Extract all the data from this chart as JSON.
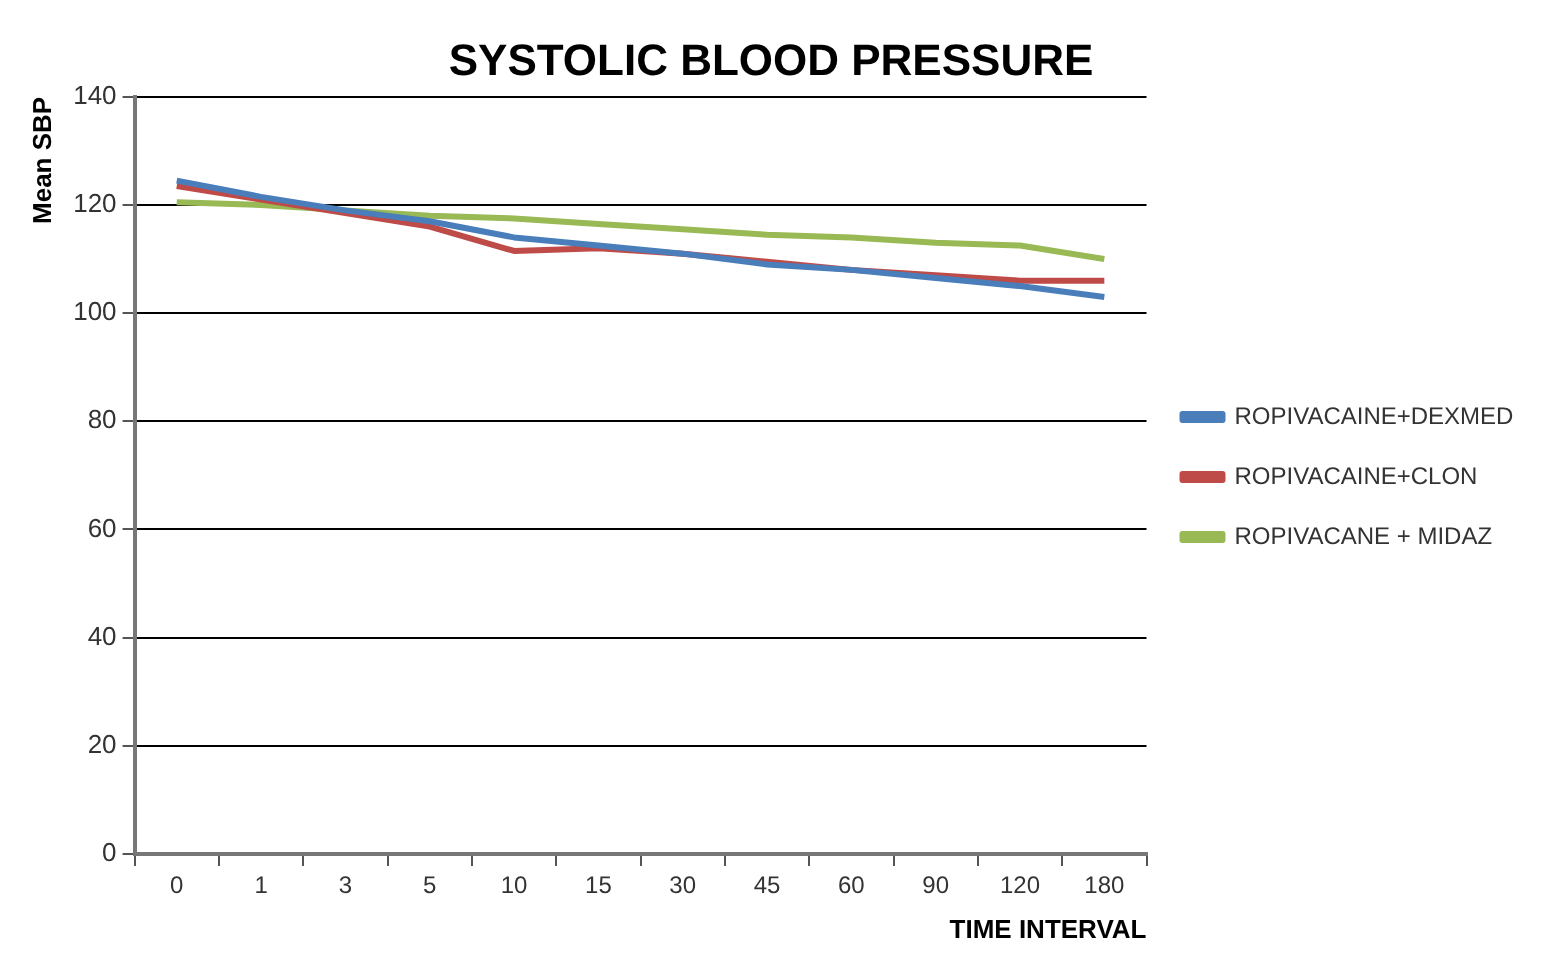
{
  "chart_data": {
    "type": "line",
    "title": "SYSTOLIC BLOOD PRESSURE",
    "xlabel": "TIME INTERVAL",
    "ylabel": "Mean SBP",
    "categories": [
      "0",
      "1",
      "3",
      "5",
      "10",
      "15",
      "30",
      "45",
      "60",
      "90",
      "120",
      "180"
    ],
    "series": [
      {
        "name": "ROPIVACAINE+DEXMED",
        "color": "#4a7ebb",
        "values": [
          124.5,
          121.5,
          119,
          117,
          114,
          112.5,
          111,
          109,
          108,
          106.5,
          105,
          103
        ]
      },
      {
        "name": "ROPIVACAINE+CLON",
        "color": "#be4b48",
        "values": [
          123.5,
          121,
          118.5,
          116,
          111.5,
          112,
          111,
          109.5,
          108,
          107,
          106,
          106
        ]
      },
      {
        "name": "ROPIVACANE + MIDAZ",
        "color": "#98b954",
        "values": [
          120.5,
          120,
          119,
          118,
          117.5,
          116.5,
          115.5,
          114.5,
          114,
          113,
          112.5,
          110
        ]
      }
    ],
    "ylim": [
      0,
      140
    ],
    "yticks": [
      0,
      20,
      40,
      60,
      80,
      100,
      120,
      140
    ],
    "grid": "y",
    "legend": "right",
    "marker": "none",
    "line_style": "solid"
  }
}
